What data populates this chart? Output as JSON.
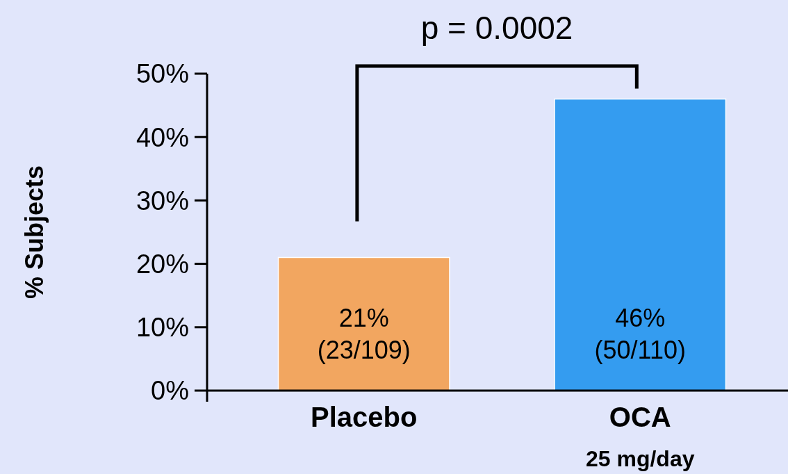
{
  "chart_data": {
    "type": "bar",
    "ylabel": "% Subjects",
    "categories": [
      "Placebo",
      "OCA\n25 mg/day"
    ],
    "values": [
      21,
      46
    ],
    "colors": [
      "#f2a660",
      "#349cf0"
    ],
    "value_labels": [
      "21%\n(23/109)",
      "46%\n(50/110)"
    ],
    "ylim": [
      0,
      50
    ],
    "yticks": [
      {
        "value": 0,
        "label": "0%"
      },
      {
        "value": 10,
        "label": "10%"
      },
      {
        "value": 20,
        "label": "20%"
      },
      {
        "value": 30,
        "label": "30%"
      },
      {
        "value": 40,
        "label": "40%"
      },
      {
        "value": 50,
        "label": "50%"
      }
    ],
    "annotations": [
      "p = 0.0002"
    ],
    "grid": false
  }
}
